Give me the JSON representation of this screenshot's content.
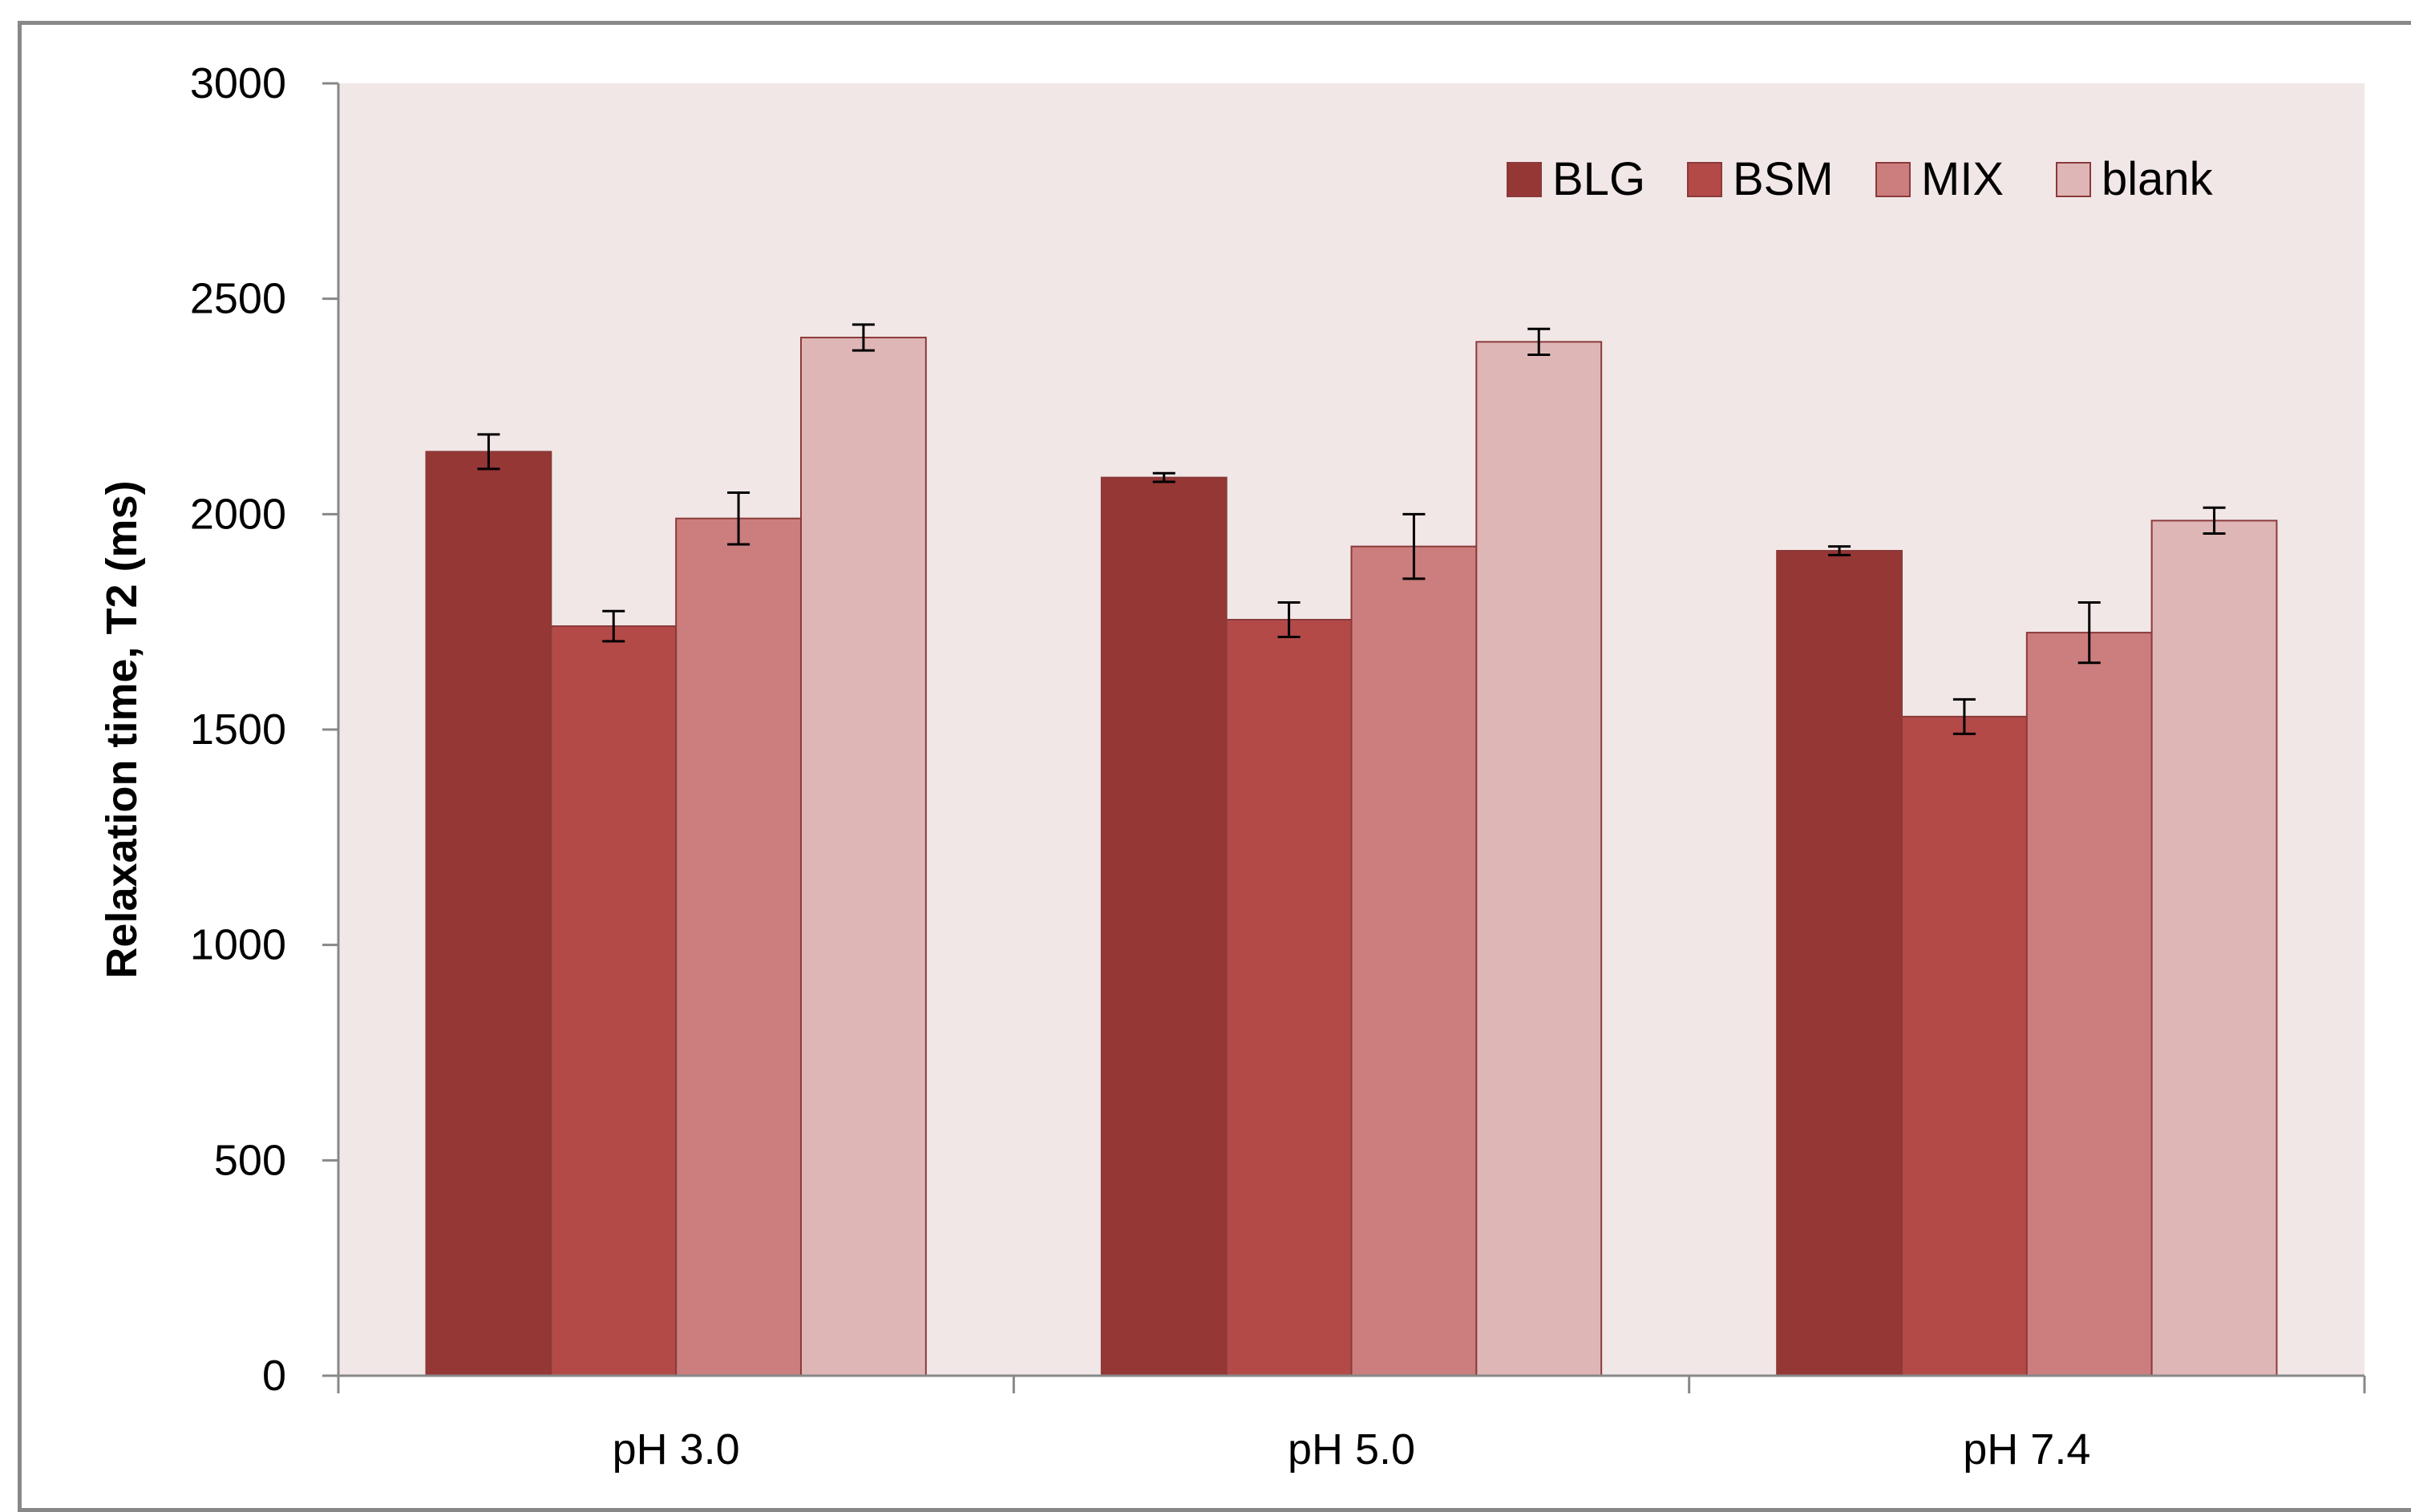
{
  "chart_data": {
    "type": "bar",
    "title": "",
    "xlabel": "",
    "ylabel": "Relaxation time, T2 (ms)",
    "ylim": [
      0,
      3000
    ],
    "yticks": [
      0,
      500,
      1000,
      1500,
      2000,
      2500,
      3000
    ],
    "categories": [
      "pH 3.0",
      "pH 5.0",
      "pH 7.4"
    ],
    "series": [
      {
        "name": "BLG",
        "color": "#953735",
        "values": [
          2145,
          2085,
          1915
        ],
        "errors": [
          40,
          10,
          10
        ]
      },
      {
        "name": "BSM",
        "color": "#B34A48",
        "values": [
          1740,
          1755,
          1530
        ],
        "errors": [
          35,
          40,
          40
        ]
      },
      {
        "name": "MIX",
        "color": "#CC7D7D",
        "values": [
          1990,
          1925,
          1725
        ],
        "errors": [
          60,
          75,
          70
        ]
      },
      {
        "name": "blank",
        "color": "#DFB6B6",
        "values": [
          2410,
          2400,
          1985
        ],
        "errors": [
          30,
          30,
          30
        ]
      }
    ],
    "grid": false,
    "legend_position": "top-right",
    "plot_background": "#F2E7E7"
  }
}
